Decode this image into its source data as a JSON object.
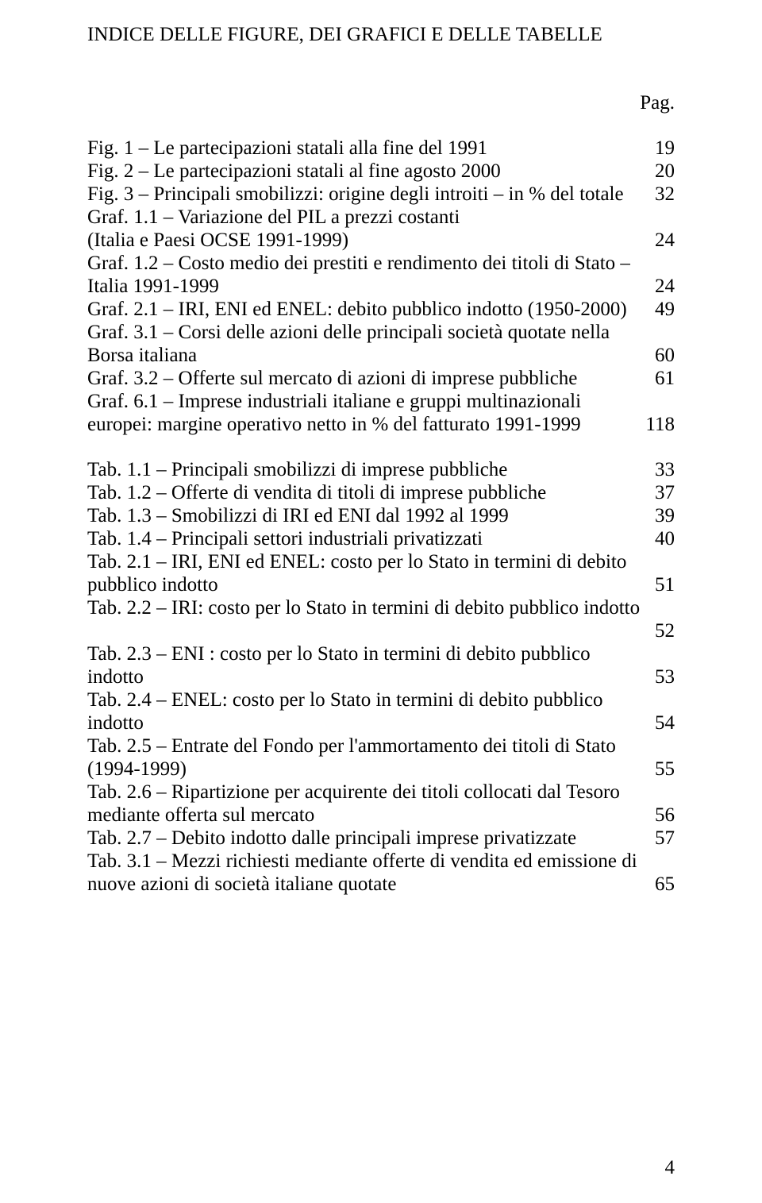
{
  "heading": "INDICE DELLE FIGURE, DEI GRAFICI E DELLE TABELLE",
  "pag_label": "Pag.",
  "page_number": "4",
  "entries": [
    [
      {
        "type": "row",
        "text": "Fig. 1 – Le partecipazioni statali alla fine del 1991",
        "page": "19"
      },
      {
        "type": "row",
        "text": "Fig. 2 – Le partecipazioni statali al fine agosto 2000",
        "page": "20"
      },
      {
        "type": "row",
        "text": "Fig. 3 – Principali smobilizzi: origine degli introiti – in % del totale",
        "page": "32"
      },
      {
        "type": "cont",
        "text": "Graf. 1.1 – Variazione del PIL a prezzi costanti"
      },
      {
        "type": "row",
        "text": "(Italia e Paesi OCSE 1991-1999)",
        "page": "24"
      },
      {
        "type": "cont",
        "text": "Graf. 1.2 – Costo medio dei prestiti e rendimento dei titoli di Stato –"
      },
      {
        "type": "row",
        "text": "Italia 1991-1999",
        "page": "24"
      },
      {
        "type": "row",
        "text": "Graf. 2.1 – IRI, ENI ed ENEL: debito pubblico indotto (1950-2000)",
        "page": "49"
      },
      {
        "type": "cont",
        "text": "Graf. 3.1 – Corsi delle azioni delle principali società quotate nella"
      },
      {
        "type": "row",
        "text": "Borsa italiana",
        "page": "60"
      },
      {
        "type": "row",
        "text": "Graf. 3.2 – Offerte sul mercato di azioni di imprese pubbliche",
        "page": "61"
      },
      {
        "type": "cont",
        "text": "Graf. 6.1 – Imprese industriali italiane e gruppi multinazionali"
      },
      {
        "type": "row",
        "text": "europei: margine operativo netto in % del fatturato 1991-1999",
        "page": "118"
      }
    ],
    [
      {
        "type": "row",
        "text": "Tab. 1.1 – Principali smobilizzi di imprese pubbliche",
        "page": "33"
      },
      {
        "type": "row",
        "text": "Tab. 1.2 – Offerte di vendita di titoli di imprese pubbliche",
        "page": "37"
      },
      {
        "type": "row",
        "text": "Tab. 1.3 – Smobilizzi di IRI ed ENI dal 1992 al 1999",
        "page": "39"
      },
      {
        "type": "row",
        "text": "Tab. 1.4 – Principali settori industriali privatizzati",
        "page": "40"
      },
      {
        "type": "cont",
        "text": "Tab. 2.1 – IRI, ENI ed ENEL: costo per lo Stato in termini di debito"
      },
      {
        "type": "row",
        "text": "pubblico indotto",
        "page": "51"
      },
      {
        "type": "row",
        "text": "Tab. 2.2 – IRI: costo per lo Stato in termini di debito pubblico indotto",
        "page": ""
      },
      {
        "type": "row",
        "text": "",
        "page": "52"
      },
      {
        "type": "cont",
        "text": "Tab. 2.3 – ENI : costo per lo Stato in termini di debito pubblico"
      },
      {
        "type": "row",
        "text": "indotto",
        "page": "53"
      },
      {
        "type": "cont",
        "text": "Tab. 2.4 – ENEL: costo per lo Stato in termini di debito pubblico"
      },
      {
        "type": "row",
        "text": "indotto",
        "page": "54"
      },
      {
        "type": "cont",
        "text": "Tab. 2.5 – Entrate del Fondo per l'ammortamento dei titoli di Stato"
      },
      {
        "type": "row",
        "text": "(1994-1999)",
        "page": "55"
      },
      {
        "type": "cont",
        "text": "Tab. 2.6 – Ripartizione per acquirente dei titoli collocati dal Tesoro"
      },
      {
        "type": "row",
        "text": "mediante offerta sul mercato",
        "page": "56"
      },
      {
        "type": "row",
        "text": "Tab. 2.7 – Debito indotto dalle principali imprese privatizzate",
        "page": "57"
      },
      {
        "type": "cont",
        "text": "Tab. 3.1 – Mezzi richiesti mediante offerte di vendita ed emissione di"
      },
      {
        "type": "row",
        "text": "nuove azioni di società italiane quotate",
        "page": "65"
      }
    ]
  ]
}
